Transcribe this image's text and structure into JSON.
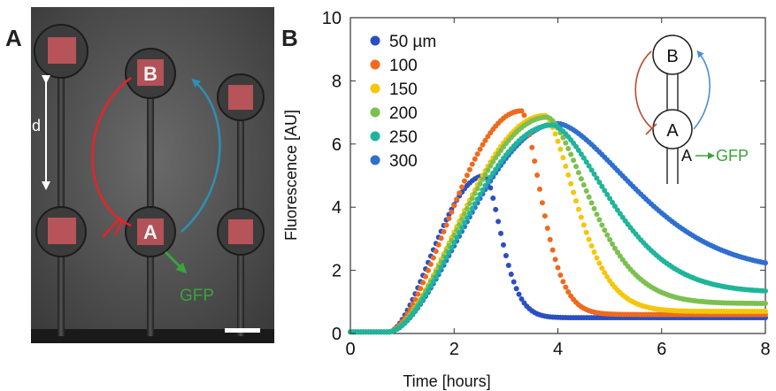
{
  "panels": {
    "a": {
      "letter": "A",
      "distance_label": "d",
      "node_b": "B",
      "node_a": "A",
      "output_label": "GFP",
      "colors": {
        "repress": "#e8222a",
        "activate": "#2f8fb5",
        "gfp": "#3aa33c"
      }
    },
    "b": {
      "letter": "B",
      "inset": {
        "node_b": "B",
        "node_a": "A",
        "output_a": "A",
        "output_gfp": "GFP"
      }
    }
  },
  "chart_data": {
    "type": "scatter",
    "xlabel": "Time [hours]",
    "ylabel": "Fluorescence [AU]",
    "xlim": [
      0,
      8
    ],
    "ylim": [
      0,
      10
    ],
    "xticks": [
      "0",
      "2",
      "4",
      "6",
      "8"
    ],
    "yticks": [
      "0",
      "2",
      "4",
      "6",
      "8",
      "10"
    ],
    "legend_position": "top-left",
    "series": [
      {
        "name": "50 µm",
        "color": "#2b4fc0",
        "peak_x": 2.6,
        "peak_y": 5.0,
        "end_y": 0.5,
        "tail_width": 0.45,
        "order": 1
      },
      {
        "name": "100",
        "color": "#ee6a1e",
        "peak_x": 3.3,
        "peak_y": 7.05,
        "end_y": 0.6,
        "tail_width": 0.55,
        "order": 2
      },
      {
        "name": "150",
        "color": "#f5c60a",
        "peak_x": 3.75,
        "peak_y": 6.9,
        "end_y": 0.7,
        "tail_width": 0.85,
        "order": 3
      },
      {
        "name": "200",
        "color": "#7cc04f",
        "peak_x": 3.8,
        "peak_y": 6.85,
        "end_y": 0.95,
        "tail_width": 1.15,
        "order": 4
      },
      {
        "name": "250",
        "color": "#1fb59a",
        "peak_x": 3.9,
        "peak_y": 6.6,
        "end_y": 1.3,
        "tail_width": 1.55,
        "order": 5
      },
      {
        "name": "300",
        "color": "#2f6fd0",
        "peak_x": 4.0,
        "peak_y": 6.65,
        "end_y": 1.95,
        "tail_width": 2.1,
        "order": 0
      }
    ]
  }
}
